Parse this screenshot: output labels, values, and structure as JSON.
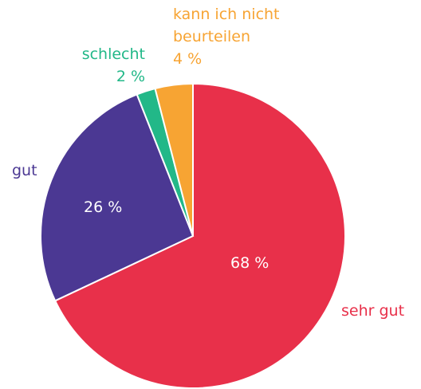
{
  "chart_data": {
    "type": "pie",
    "categories": [
      "sehr gut",
      "gut",
      "schlecht",
      "kann ich nicht beurteilen"
    ],
    "values": [
      68,
      26,
      2,
      4
    ],
    "value_labels": [
      "68 %",
      "26 %",
      "2 %",
      "4 %"
    ],
    "colors": [
      "#e8304a",
      "#4b3893",
      "#22b888",
      "#f7a433"
    ]
  }
}
